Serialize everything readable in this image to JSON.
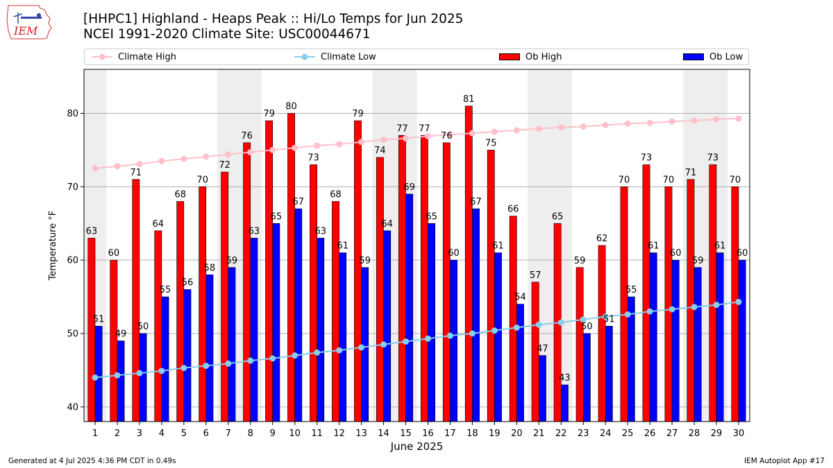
{
  "header": {
    "title_line1": "[HHPC1] Highland - Heaps Peak :: Hi/Lo Temps for Jun 2025",
    "title_line2": "NCEI 1991-2020 Climate Site: USC00044671",
    "logo_text": "IEM"
  },
  "footer": {
    "left": "Generated at 4 Jul 2025 4:36 PM CDT in 0.49s",
    "right": "IEM Autoplot App #17"
  },
  "colors": {
    "ob_high": "#ff0000",
    "ob_low": "#0000ff",
    "climate_high": "#ffc0cb",
    "climate_low": "#87ceeb",
    "weekend_shade": "#eeeeee",
    "grid": "#b0b0b0"
  },
  "chart_data": {
    "type": "bar",
    "xlabel": "June 2025",
    "ylabel": "Temperature °F",
    "ylim": [
      38,
      86
    ],
    "yticks": [
      40,
      50,
      60,
      70,
      80
    ],
    "grid": "horizontal",
    "legend_placement": "top",
    "legend": [
      "Climate High",
      "Climate Low",
      "Ob High",
      "Ob Low"
    ],
    "categories": [
      "1",
      "2",
      "3",
      "4",
      "5",
      "6",
      "7",
      "8",
      "9",
      "10",
      "11",
      "12",
      "13",
      "14",
      "15",
      "16",
      "17",
      "18",
      "19",
      "20",
      "21",
      "22",
      "23",
      "24",
      "25",
      "26",
      "27",
      "28",
      "29",
      "30"
    ],
    "shaded_days": [
      1,
      7,
      8,
      14,
      15,
      21,
      22,
      28,
      29
    ],
    "series": [
      {
        "name": "Ob High",
        "kind": "bar",
        "values": [
          63,
          60,
          71,
          64,
          68,
          70,
          72,
          76,
          79,
          80,
          73,
          68,
          79,
          74,
          77,
          77,
          76,
          81,
          75,
          66,
          57,
          65,
          59,
          62,
          70,
          73,
          70,
          71,
          73,
          70
        ]
      },
      {
        "name": "Ob Low",
        "kind": "bar",
        "values": [
          51,
          49,
          50,
          55,
          56,
          58,
          59,
          63,
          65,
          67,
          63,
          61,
          59,
          64,
          69,
          65,
          60,
          67,
          61,
          54,
          47,
          43,
          50,
          51,
          55,
          61,
          60,
          59,
          61,
          60
        ]
      },
      {
        "name": "Climate High",
        "kind": "line",
        "values": [
          72.5,
          72.8,
          73.1,
          73.5,
          73.8,
          74.1,
          74.4,
          74.7,
          75.0,
          75.3,
          75.6,
          75.8,
          76.1,
          76.4,
          76.6,
          76.9,
          77.1,
          77.3,
          77.5,
          77.7,
          77.9,
          78.1,
          78.2,
          78.4,
          78.6,
          78.7,
          78.9,
          79.0,
          79.2,
          79.3
        ]
      },
      {
        "name": "Climate Low",
        "kind": "line",
        "values": [
          44.0,
          44.3,
          44.6,
          44.9,
          45.3,
          45.6,
          45.9,
          46.3,
          46.6,
          47.0,
          47.4,
          47.7,
          48.1,
          48.5,
          48.9,
          49.3,
          49.7,
          50.0,
          50.4,
          50.8,
          51.2,
          51.5,
          51.9,
          52.3,
          52.6,
          53.0,
          53.3,
          53.6,
          53.9,
          54.3
        ]
      }
    ]
  }
}
